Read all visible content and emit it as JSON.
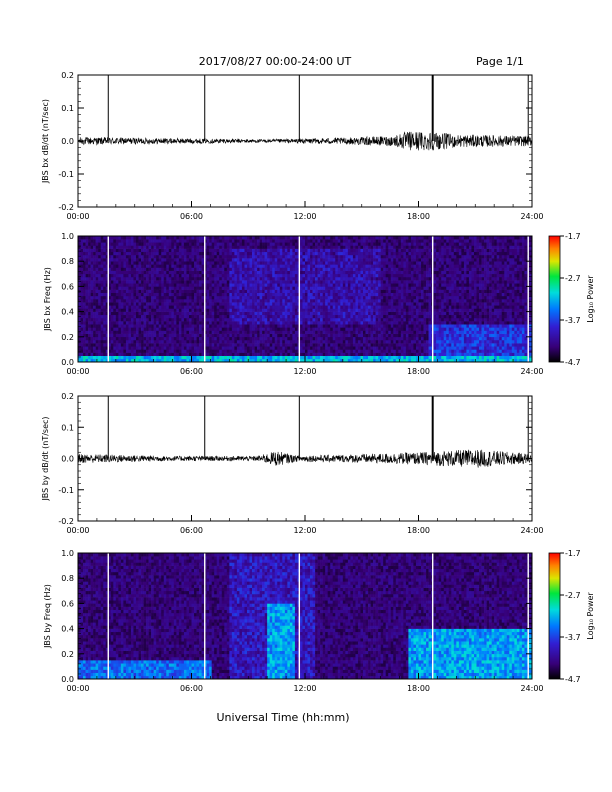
{
  "header": {
    "title": "2017/08/27  00:00-24:00 UT",
    "page": "Page 1/1"
  },
  "footer": {
    "xlabel": "Universal Time (hh:mm)"
  },
  "chart_data": [
    {
      "type": "line",
      "ylabel": "JBS bx dB/dt (nT/sec)",
      "xlim": [
        "00:00",
        "24:00"
      ],
      "ylim": [
        -0.2,
        0.2
      ],
      "x_ticks": [
        "00:00",
        "06:00",
        "12:00",
        "18:00",
        "24:00"
      ],
      "y_ticks": [
        "-0.2",
        "-0.1",
        "0.0",
        "0.1",
        "0.2"
      ],
      "spike_times_hr": [
        1.6,
        6.7,
        11.7,
        18.75,
        23.8
      ],
      "baseline": 0.0,
      "noise_envelope": [
        {
          "x": 0,
          "amp": 0.012
        },
        {
          "x": 7,
          "amp": 0.007
        },
        {
          "x": 10,
          "amp": 0.005
        },
        {
          "x": 14,
          "amp": 0.01
        },
        {
          "x": 16.5,
          "amp": 0.015
        },
        {
          "x": 17.5,
          "amp": 0.03
        },
        {
          "x": 18.5,
          "amp": 0.03
        },
        {
          "x": 20,
          "amp": 0.02
        },
        {
          "x": 24,
          "amp": 0.015
        }
      ]
    },
    {
      "type": "heatmap",
      "ylabel": "JBS bx Freq (Hz)",
      "xlim": [
        "00:00",
        "24:00"
      ],
      "ylim": [
        0.0,
        1.0
      ],
      "x_ticks": [
        "00:00",
        "06:00",
        "12:00",
        "18:00",
        "24:00"
      ],
      "y_ticks": [
        "0.0",
        "0.2",
        "0.4",
        "0.6",
        "0.8",
        "1.0"
      ],
      "gap_times_hr": [
        1.6,
        6.7,
        11.7,
        18.75,
        23.8
      ],
      "colorbar": {
        "label": "Log₁₀ Power",
        "ticks": [
          "-1.7",
          "-2.7",
          "-3.7",
          "-4.7"
        ],
        "range": [
          -4.7,
          -1.7
        ]
      },
      "enhancement_regions": [
        {
          "t0": 0,
          "t1": 24,
          "f0": 0.0,
          "f1": 0.04,
          "level": -3.2
        },
        {
          "t0": 8,
          "t1": 16,
          "f0": 0.3,
          "f1": 0.9,
          "level": -4.1
        },
        {
          "t0": 18.5,
          "t1": 24,
          "f0": 0.0,
          "f1": 0.3,
          "level": -3.8
        }
      ]
    },
    {
      "type": "line",
      "ylabel": "JBS by dB/dt (nT/sec)",
      "xlim": [
        "00:00",
        "24:00"
      ],
      "ylim": [
        -0.2,
        0.2
      ],
      "x_ticks": [
        "00:00",
        "06:00",
        "12:00",
        "18:00",
        "24:00"
      ],
      "y_ticks": [
        "-0.2",
        "-0.1",
        "0.0",
        "0.1",
        "0.2"
      ],
      "spike_times_hr": [
        1.6,
        6.7,
        11.7,
        18.75,
        23.8
      ],
      "baseline": 0.0,
      "noise_envelope": [
        {
          "x": 0,
          "amp": 0.015
        },
        {
          "x": 5,
          "amp": 0.008
        },
        {
          "x": 9.5,
          "amp": 0.008
        },
        {
          "x": 10.5,
          "amp": 0.025
        },
        {
          "x": 11.5,
          "amp": 0.01
        },
        {
          "x": 14,
          "amp": 0.012
        },
        {
          "x": 18,
          "amp": 0.02
        },
        {
          "x": 21,
          "amp": 0.03
        },
        {
          "x": 24,
          "amp": 0.015
        }
      ]
    },
    {
      "type": "heatmap",
      "ylabel": "JBS by Freq (Hz)",
      "xlim": [
        "00:00",
        "24:00"
      ],
      "ylim": [
        0.0,
        1.0
      ],
      "x_ticks": [
        "00:00",
        "06:00",
        "12:00",
        "18:00",
        "24:00"
      ],
      "y_ticks": [
        "0.0",
        "0.2",
        "0.4",
        "0.6",
        "0.8",
        "1.0"
      ],
      "gap_times_hr": [
        1.6,
        6.7,
        11.7,
        18.75,
        23.8
      ],
      "colorbar": {
        "label": "Log₁₀ Power",
        "ticks": [
          "-1.7",
          "-2.7",
          "-3.7",
          "-4.7"
        ],
        "range": [
          -4.7,
          -1.7
        ]
      },
      "enhancement_regions": [
        {
          "t0": 0,
          "t1": 7,
          "f0": 0.0,
          "f1": 0.15,
          "level": -3.5
        },
        {
          "t0": 8,
          "t1": 12.5,
          "f0": 0.0,
          "f1": 1.0,
          "level": -4.0
        },
        {
          "t0": 10,
          "t1": 11.5,
          "f0": 0.0,
          "f1": 0.6,
          "level": -3.3
        },
        {
          "t0": 17.5,
          "t1": 24,
          "f0": 0.0,
          "f1": 0.4,
          "level": -3.3
        }
      ]
    }
  ]
}
